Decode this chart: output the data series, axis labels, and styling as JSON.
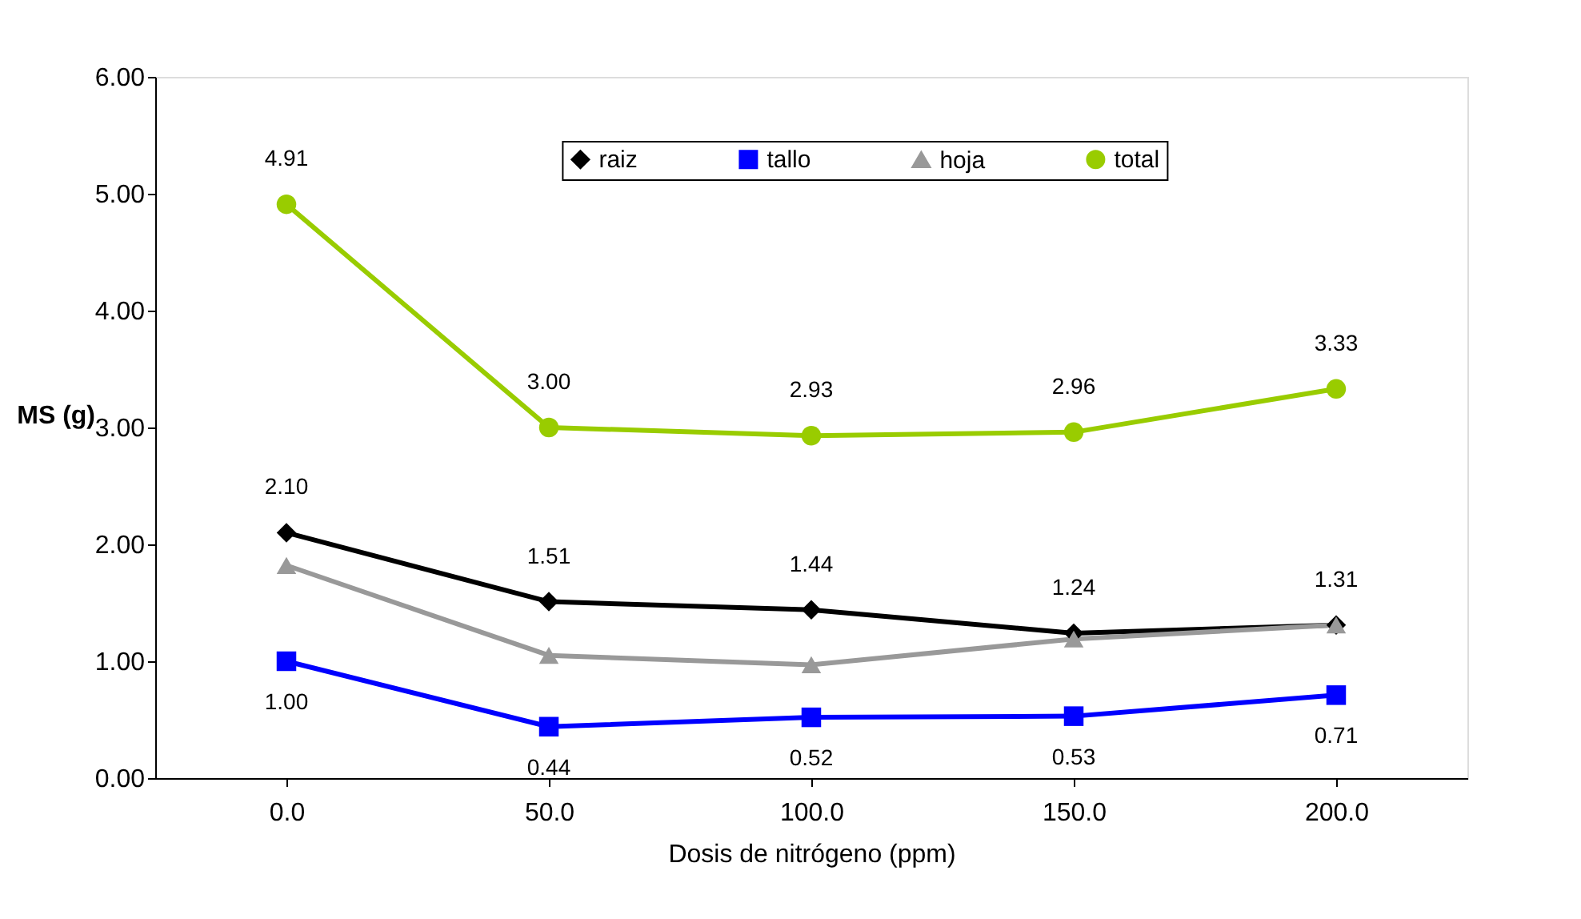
{
  "chart_data": {
    "type": "line",
    "xlabel": "Dosis de nitrógeno (ppm)",
    "ylabel": "MS (g)",
    "categories": [
      "0.0",
      "50.0",
      "100.0",
      "150.0",
      "200.0"
    ],
    "ylim": [
      0,
      6
    ],
    "yticks": [
      {
        "value": 0,
        "label": "0.00"
      },
      {
        "value": 1,
        "label": "1.00"
      },
      {
        "value": 2,
        "label": "2.00"
      },
      {
        "value": 3,
        "label": "3.00"
      },
      {
        "value": 4,
        "label": "4.00"
      },
      {
        "value": 5,
        "label": "5.00"
      },
      {
        "value": 6,
        "label": "6.00"
      }
    ],
    "grid": false,
    "legend": "top",
    "series": [
      {
        "name": "raiz",
        "color": "#000000",
        "marker": "diamond",
        "values": [
          2.1,
          1.51,
          1.44,
          1.24,
          1.31
        ],
        "value_labels": [
          "2.10",
          "1.51",
          "1.44",
          "1.24",
          "1.31"
        ]
      },
      {
        "name": "tallo",
        "color": "#0000ff",
        "marker": "square",
        "values": [
          1.0,
          0.44,
          0.52,
          0.53,
          0.71
        ],
        "value_labels": [
          "1.00",
          "0.44",
          "0.52",
          "0.53",
          "0.71"
        ]
      },
      {
        "name": "hoja",
        "color": "#999999",
        "marker": "triangle",
        "values": [
          1.82,
          1.05,
          0.97,
          1.19,
          1.31
        ]
      },
      {
        "name": "total",
        "color": "#99cc00",
        "marker": "circle",
        "values": [
          4.91,
          3.0,
          2.93,
          2.96,
          3.33
        ],
        "value_labels": [
          "4.91",
          "3.00",
          "2.93",
          "2.96",
          "3.33"
        ]
      }
    ]
  }
}
